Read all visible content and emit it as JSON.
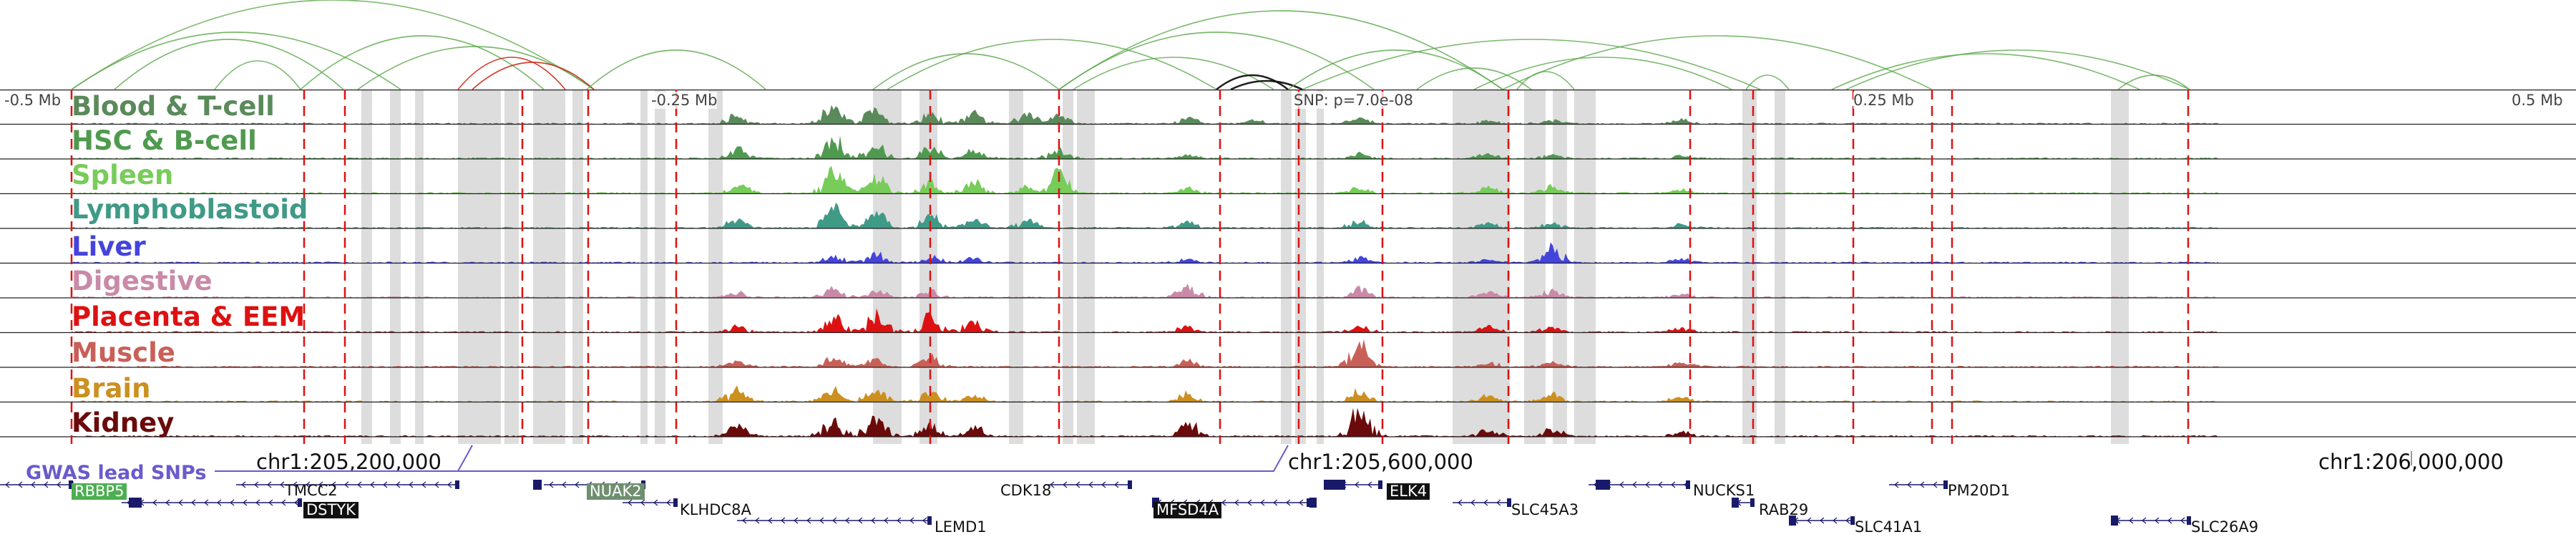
{
  "axis_ticks": {
    "left": "-0.5 Mb",
    "mid_left": "-0.25 Mb",
    "snp": "SNP: p=7.0e-08",
    "mid_right": "0.25 Mb",
    "right": "0.5 Mb"
  },
  "tracks": [
    {
      "label": "Blood & T-cell",
      "color": "#5a8a5a",
      "peaks": [
        [
          0.31,
          0.25
        ],
        [
          0.355,
          0.55
        ],
        [
          0.375,
          0.45
        ],
        [
          0.4,
          0.3
        ],
        [
          0.42,
          0.35
        ],
        [
          0.445,
          0.3
        ],
        [
          0.46,
          0.25
        ],
        [
          0.52,
          0.15
        ],
        [
          0.55,
          0.12
        ],
        [
          0.6,
          0.15
        ],
        [
          0.66,
          0.1
        ],
        [
          0.69,
          0.12
        ],
        [
          0.75,
          0.12
        ]
      ]
    },
    {
      "label": "HSC & B-cell",
      "color": "#4f9a4f",
      "peaks": [
        [
          0.31,
          0.3
        ],
        [
          0.355,
          0.6
        ],
        [
          0.375,
          0.4
        ],
        [
          0.4,
          0.35
        ],
        [
          0.42,
          0.3
        ],
        [
          0.46,
          0.25
        ],
        [
          0.52,
          0.1
        ],
        [
          0.6,
          0.15
        ],
        [
          0.66,
          0.15
        ],
        [
          0.69,
          0.12
        ],
        [
          0.75,
          0.1
        ]
      ]
    },
    {
      "label": "Spleen",
      "color": "#77cc5a",
      "peaks": [
        [
          0.31,
          0.3
        ],
        [
          0.355,
          0.7
        ],
        [
          0.375,
          0.5
        ],
        [
          0.4,
          0.3
        ],
        [
          0.42,
          0.35
        ],
        [
          0.445,
          0.2
        ],
        [
          0.46,
          0.6
        ],
        [
          0.52,
          0.15
        ],
        [
          0.6,
          0.2
        ],
        [
          0.66,
          0.2
        ],
        [
          0.69,
          0.2
        ],
        [
          0.75,
          0.12
        ]
      ]
    },
    {
      "label": "Lymphoblastoid",
      "color": "#3f9a86",
      "peaks": [
        [
          0.31,
          0.25
        ],
        [
          0.355,
          0.6
        ],
        [
          0.375,
          0.45
        ],
        [
          0.4,
          0.4
        ],
        [
          0.42,
          0.3
        ],
        [
          0.445,
          0.25
        ],
        [
          0.52,
          0.2
        ],
        [
          0.6,
          0.2
        ],
        [
          0.66,
          0.12
        ],
        [
          0.69,
          0.15
        ],
        [
          0.75,
          0.1
        ]
      ]
    },
    {
      "label": "Liver",
      "color": "#4444dd",
      "peaks": [
        [
          0.355,
          0.2
        ],
        [
          0.375,
          0.25
        ],
        [
          0.4,
          0.2
        ],
        [
          0.42,
          0.15
        ],
        [
          0.52,
          0.1
        ],
        [
          0.6,
          0.15
        ],
        [
          0.66,
          0.1
        ],
        [
          0.69,
          0.45
        ],
        [
          0.75,
          0.12
        ]
      ]
    },
    {
      "label": "Digestive",
      "color": "#c98aa8",
      "peaks": [
        [
          0.31,
          0.15
        ],
        [
          0.355,
          0.25
        ],
        [
          0.375,
          0.2
        ],
        [
          0.4,
          0.2
        ],
        [
          0.52,
          0.3
        ],
        [
          0.6,
          0.25
        ],
        [
          0.66,
          0.15
        ],
        [
          0.69,
          0.2
        ],
        [
          0.75,
          0.1
        ]
      ]
    },
    {
      "label": "Placenta & EEM",
      "color": "#dd1111",
      "peaks": [
        [
          0.31,
          0.2
        ],
        [
          0.355,
          0.5
        ],
        [
          0.375,
          0.55
        ],
        [
          0.4,
          0.55
        ],
        [
          0.42,
          0.3
        ],
        [
          0.52,
          0.2
        ],
        [
          0.6,
          0.2
        ],
        [
          0.66,
          0.15
        ],
        [
          0.69,
          0.15
        ],
        [
          0.75,
          0.12
        ]
      ]
    },
    {
      "label": "Muscle",
      "color": "#c86058",
      "peaks": [
        [
          0.31,
          0.15
        ],
        [
          0.355,
          0.3
        ],
        [
          0.375,
          0.25
        ],
        [
          0.4,
          0.3
        ],
        [
          0.52,
          0.2
        ],
        [
          0.6,
          0.7
        ],
        [
          0.66,
          0.15
        ],
        [
          0.69,
          0.15
        ],
        [
          0.75,
          0.12
        ]
      ]
    },
    {
      "label": "Brain",
      "color": "#cc9020",
      "peaks": [
        [
          0.31,
          0.35
        ],
        [
          0.355,
          0.35
        ],
        [
          0.375,
          0.4
        ],
        [
          0.4,
          0.3
        ],
        [
          0.42,
          0.2
        ],
        [
          0.52,
          0.25
        ],
        [
          0.6,
          0.35
        ],
        [
          0.66,
          0.2
        ],
        [
          0.69,
          0.25
        ],
        [
          0.75,
          0.15
        ]
      ]
    },
    {
      "label": "Kidney",
      "color": "#6a0a0a",
      "peaks": [
        [
          0.31,
          0.3
        ],
        [
          0.355,
          0.5
        ],
        [
          0.375,
          0.6
        ],
        [
          0.4,
          0.35
        ],
        [
          0.42,
          0.3
        ],
        [
          0.52,
          0.45
        ],
        [
          0.6,
          0.85
        ],
        [
          0.66,
          0.2
        ],
        [
          0.69,
          0.2
        ],
        [
          0.75,
          0.15
        ]
      ]
    }
  ],
  "coordinates": {
    "c1": "chr1:205,200,000",
    "c2": "chr1:205,600,000",
    "c3": "chr1:206,000,000"
  },
  "gwas_label": "GWAS lead SNPs",
  "genes": [
    {
      "name": "RBBP5",
      "style": "green"
    },
    {
      "name": "TMCC2",
      "style": "plain"
    },
    {
      "name": "NUAK2",
      "style": "grey"
    },
    {
      "name": "CDK18",
      "style": "plain"
    },
    {
      "name": "ELK4",
      "style": "black"
    },
    {
      "name": "NUCKS1",
      "style": "plain"
    },
    {
      "name": "PM20D1",
      "style": "plain"
    },
    {
      "name": "DSTYK",
      "style": "black"
    },
    {
      "name": "KLHDC8A",
      "style": "plain"
    },
    {
      "name": "MFSD4A",
      "style": "black"
    },
    {
      "name": "SLC45A3",
      "style": "plain"
    },
    {
      "name": "RAB29",
      "style": "plain"
    },
    {
      "name": "LEMD1",
      "style": "plain"
    },
    {
      "name": "SLC41A1",
      "style": "plain"
    },
    {
      "name": "SLC26A9",
      "style": "plain"
    }
  ],
  "colors": {
    "loop_green": "#5aa84a",
    "loop_dark": "#111111",
    "loop_red": "#cc3322",
    "gene_box": "#1a1a6a",
    "highlight": "#dddddd",
    "boundary": "#dd1111",
    "gwas_line": "#6a5acd"
  }
}
